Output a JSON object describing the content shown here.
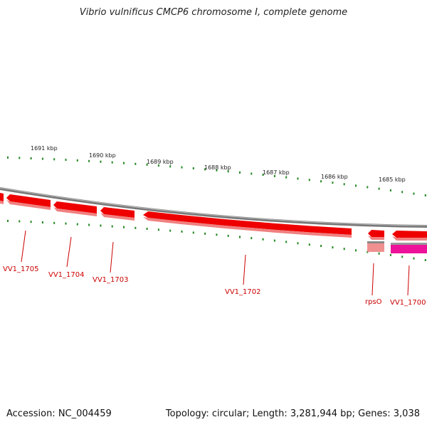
{
  "title": "Vibrio vulnificus CMCP6 chromosome I, complete genome",
  "accession": "Accession: NC_004459",
  "summary": "Topology: circular; Length: 3,281,944 bp; Genes: 3,038",
  "ticks": [
    {
      "label": "1691 kbp"
    },
    {
      "label": "1690 kbp"
    },
    {
      "label": "1689 kbp"
    },
    {
      "label": "1688 kbp"
    },
    {
      "label": "1687 kbp"
    },
    {
      "label": "1686 kbp"
    },
    {
      "label": "1685 kbp"
    }
  ],
  "genes": [
    {
      "label": "VV1_1705"
    },
    {
      "label": "VV1_1704"
    },
    {
      "label": "VV1_1703"
    },
    {
      "label": "VV1_1702"
    },
    {
      "label": "rpsO"
    },
    {
      "label": "VV1_1700"
    }
  ],
  "colors": {
    "tick": "#228822",
    "gene": "#ee0000",
    "gene_shadow": "#f08080",
    "rna": "#f09090",
    "highlight": "#ee1199",
    "backbone": "#888888",
    "label": "#cc0000"
  }
}
